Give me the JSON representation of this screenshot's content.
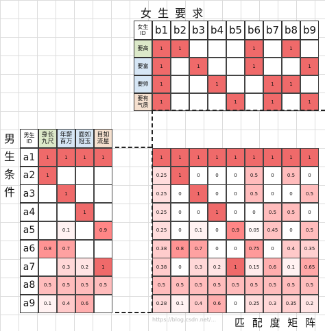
{
  "titles": {
    "female_title": "女 生 要 求",
    "male_title_chars": [
      "男",
      "生",
      "条",
      "件"
    ],
    "match_title": "匹 配 度 矩 阵"
  },
  "female": {
    "id_header": "女生\nID",
    "ids": [
      "b1",
      "b2",
      "b3",
      "b4",
      "b5",
      "b6",
      "b7",
      "b8",
      "b9"
    ],
    "requirements": [
      {
        "label": "要高",
        "color": "#dce9c9",
        "values": [
          "1",
          "1",
          "",
          "",
          "",
          "1",
          "",
          "1",
          ""
        ]
      },
      {
        "label": "要富",
        "color": "#d6e6f5",
        "values": [
          "1",
          "",
          "1",
          "",
          "",
          "1",
          "",
          "",
          "1"
        ]
      },
      {
        "label": "要帅",
        "color": "#d6e6f5",
        "values": [
          "1",
          "",
          "",
          "1",
          "",
          "",
          "1",
          "1",
          ""
        ]
      },
      {
        "label": "要有\n气质",
        "color": "#f5e0cf",
        "values": [
          "1",
          "",
          "",
          "",
          "1",
          "",
          "1",
          "",
          "1"
        ]
      }
    ]
  },
  "male": {
    "id_header": "男生\nID",
    "attributes": [
      {
        "label": "身长\n九尺",
        "color": "#dce9c9"
      },
      {
        "label": "年薪\n百万",
        "color": "#d6e6f5"
      },
      {
        "label": "面如\n冠玉",
        "color": "#d6e6f5"
      },
      {
        "label": "目如\n流星",
        "color": "#f5e0cf"
      }
    ],
    "ids": [
      "a1",
      "a2",
      "a3",
      "a4",
      "a5",
      "a6",
      "a7",
      "a8",
      "a9"
    ],
    "values": [
      [
        "1",
        "1",
        "1",
        "1"
      ],
      [
        "1",
        "",
        "",
        ""
      ],
      [
        "",
        "1",
        "",
        ""
      ],
      [
        "",
        "",
        "1",
        ""
      ],
      [
        "",
        "0.1",
        "",
        "0.9"
      ],
      [
        "0.8",
        "0.7",
        "",
        ""
      ],
      [
        "",
        "0.3",
        "0.2",
        "1"
      ],
      [
        "0.5",
        "0.5",
        "0.5",
        "0.5"
      ],
      [
        "0.1",
        "0.4",
        "0.6",
        ""
      ]
    ]
  },
  "matrix": {
    "values": [
      [
        "1",
        "1",
        "1",
        "1",
        "1",
        "1",
        "1",
        "1",
        "1"
      ],
      [
        "0.25",
        "1",
        "0",
        "0",
        "0",
        "0.5",
        "0",
        "0.5",
        "0"
      ],
      [
        "0.25",
        "0",
        "1",
        "0",
        "0",
        "0.5",
        "0",
        "0",
        "0.5"
      ],
      [
        "0.25",
        "0",
        "0",
        "1",
        "0",
        "0",
        "0.5",
        "0.5",
        "0"
      ],
      [
        "0.25",
        "0",
        "0.1",
        "0",
        "0.9",
        "0.05",
        "0.45",
        "0",
        "0.5"
      ],
      [
        "0.38",
        "0.8",
        "0.7",
        "0",
        "0",
        "0.75",
        "0",
        "0.4",
        "0.35"
      ],
      [
        "0.38",
        "0",
        "0.3",
        "0.2",
        "1",
        "0.15",
        "0.6",
        "0.1",
        "0.65"
      ],
      [
        "0.5",
        "0.5",
        "0.5",
        "0.5",
        "0.5",
        "0.5",
        "0.5",
        "0.5",
        "0.5"
      ],
      [
        "0.28",
        "0.1",
        "0.4",
        "0.6",
        "0",
        "0.25",
        "0.3",
        "0.35",
        "0.2"
      ]
    ]
  },
  "colors": {
    "full": "#ef6a6a",
    "accent": "#e84848"
  },
  "watermark": "https://blog.csdn.net/..."
}
